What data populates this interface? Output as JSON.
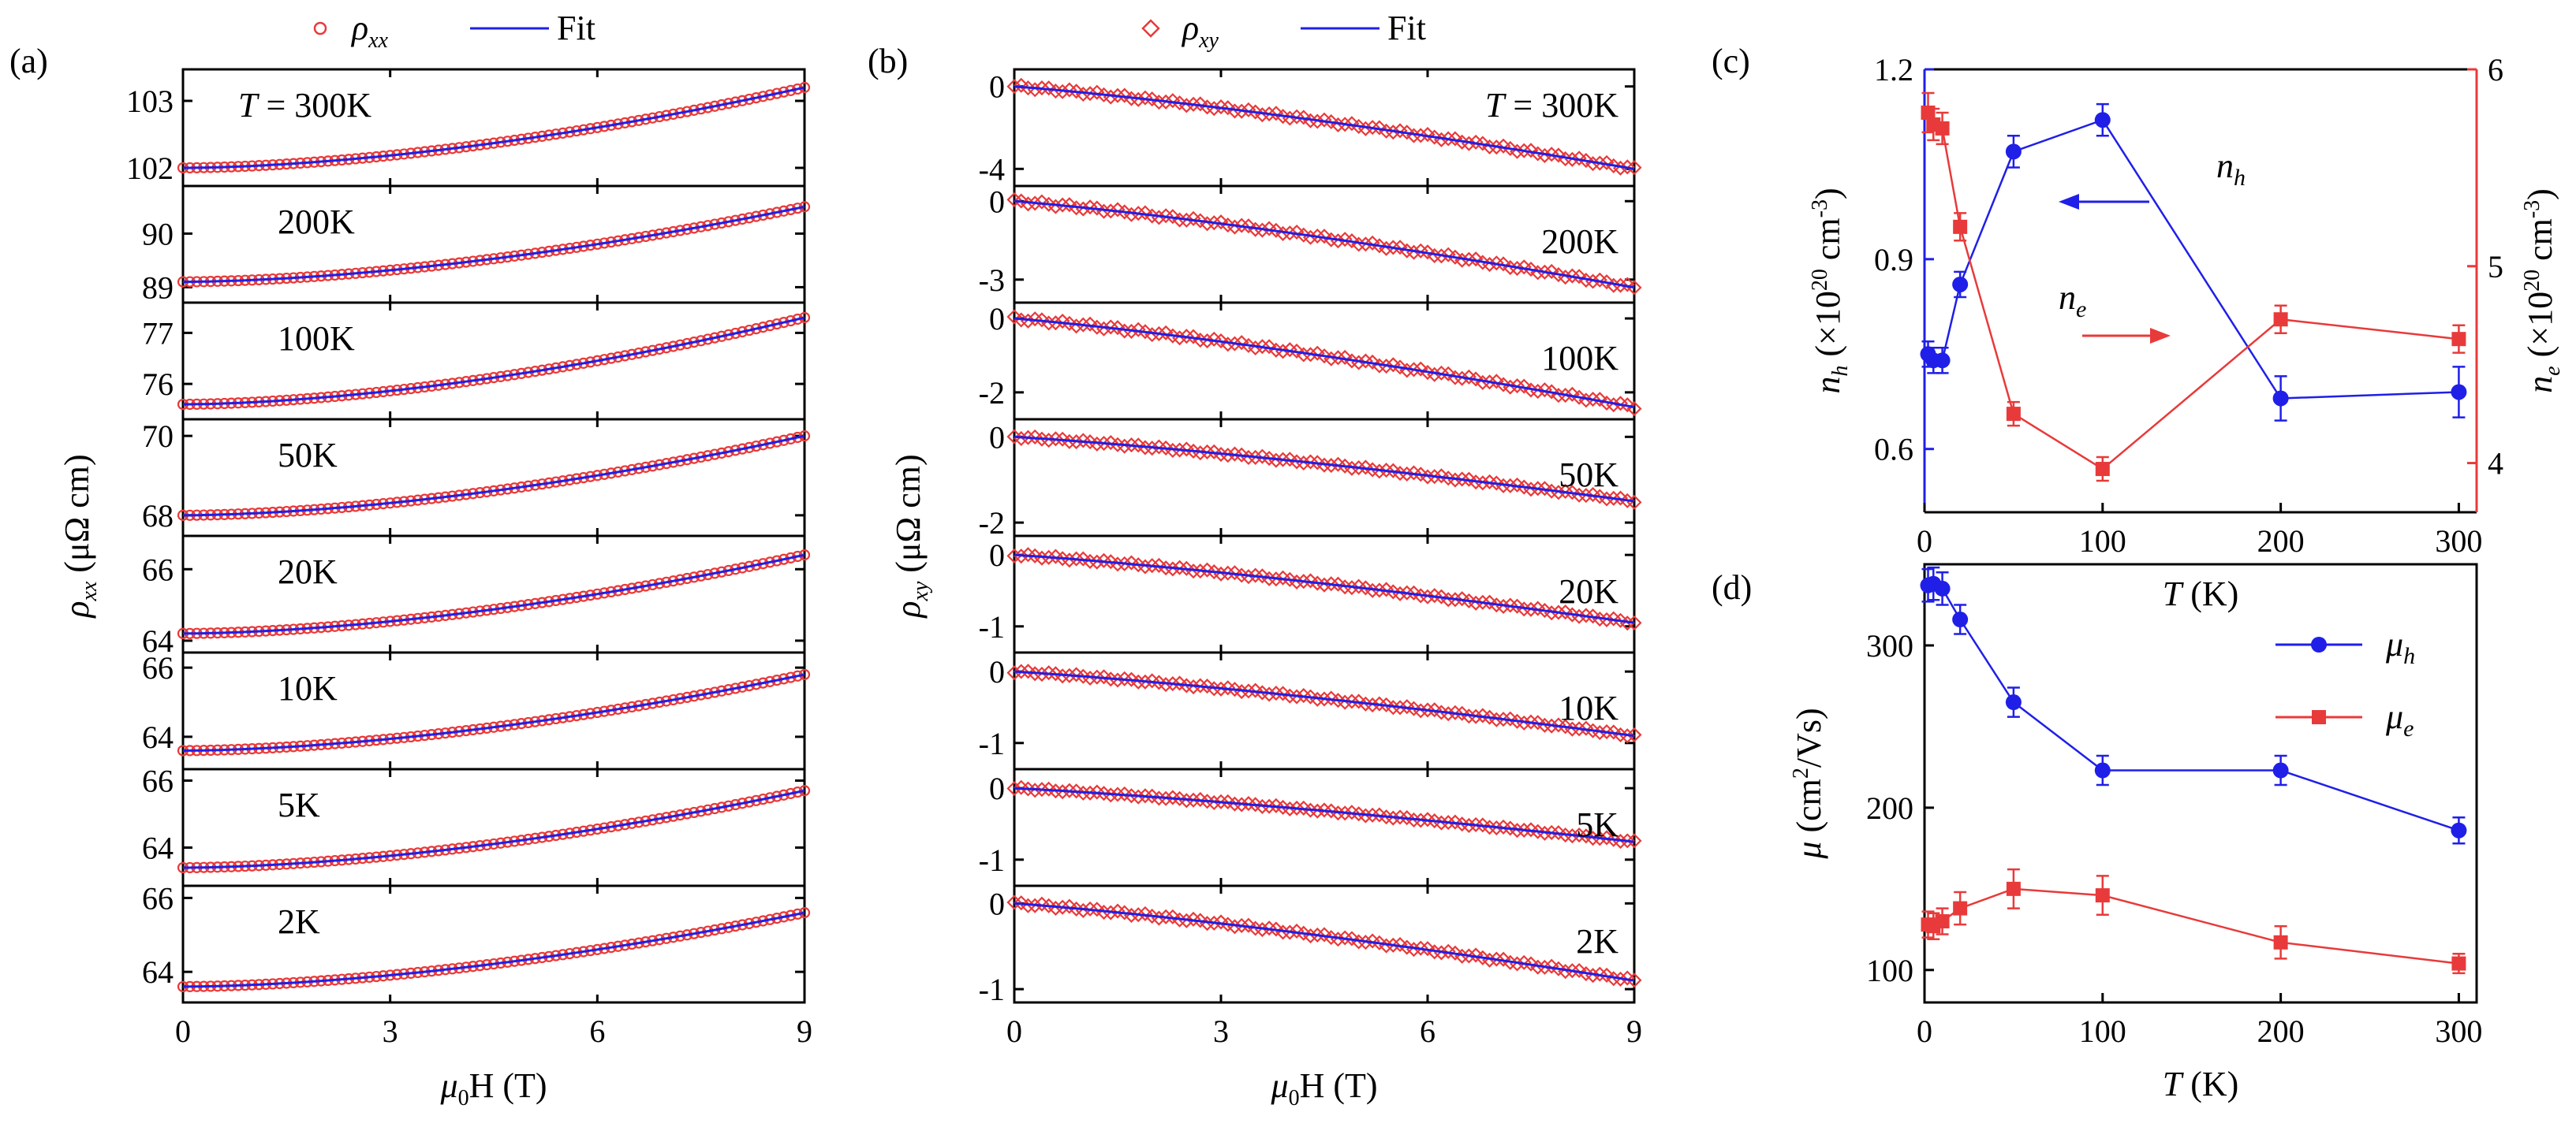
{
  "chart_data": [
    {
      "panel": "(a)",
      "type": "line",
      "legend": {
        "markers_label": "ρ",
        "markers_sub": "xx",
        "line_label": "Fit"
      },
      "xlabel": "μ0H (T)",
      "xlabel_main": "μ",
      "xlabel_sub": "0",
      "xlabel_tail": "H (T)",
      "ylabel": "ρxx (μΩ cm)",
      "ylabel_main": "ρ",
      "ylabel_sub": "xx",
      "ylabel_tail": " (μΩ cm)",
      "xlim": [
        0,
        9
      ],
      "xticks": [
        "0",
        "3",
        "6",
        "9"
      ],
      "subplots": [
        {
          "label": "T = 300K",
          "label_prefix": "T",
          "label_rest": " = 300K",
          "ylim": [
            101.8,
            103.4
          ],
          "yticks": [
            102,
            103
          ],
          "ytick_labels": [
            "102",
            "103"
          ],
          "y0": 102.0,
          "y9": 103.2
        },
        {
          "label": "200K",
          "ylim": [
            88.8,
            90.8
          ],
          "yticks": [
            89,
            90
          ],
          "ytick_labels": [
            "89",
            "90"
          ],
          "y0": 89.1,
          "y9": 90.5
        },
        {
          "label": "100K",
          "ylim": [
            75.4,
            77.5
          ],
          "yticks": [
            76,
            77
          ],
          "ytick_labels": [
            "76",
            "77"
          ],
          "y0": 75.6,
          "y9": 77.3
        },
        {
          "label": "50K",
          "ylim": [
            67.6,
            70.3
          ],
          "yticks": [
            68,
            70
          ],
          "ytick_labels": [
            "68",
            "70"
          ],
          "y0": 68.0,
          "y9": 70.0
        },
        {
          "label": "20K",
          "ylim": [
            63.8,
            66.8
          ],
          "yticks": [
            64,
            66
          ],
          "ytick_labels": [
            "64",
            "66"
          ],
          "y0": 64.2,
          "y9": 66.4
        },
        {
          "label": "10K",
          "ylim": [
            63.2,
            66.3
          ],
          "yticks": [
            64,
            66
          ],
          "ytick_labels": [
            "64",
            "66"
          ],
          "y0": 63.6,
          "y9": 65.8
        },
        {
          "label": "5K",
          "ylim": [
            63.0,
            66.2
          ],
          "yticks": [
            64,
            66
          ],
          "ytick_labels": [
            "64",
            "66"
          ],
          "y0": 63.4,
          "y9": 65.7
        },
        {
          "label": "2K",
          "ylim": [
            63.3,
            66.2
          ],
          "yticks": [
            64,
            66
          ],
          "ytick_labels": [
            "64",
            "66"
          ],
          "y0": 63.6,
          "y9": 65.6
        }
      ]
    },
    {
      "panel": "(b)",
      "type": "line",
      "legend": {
        "markers_label": "ρ",
        "markers_sub": "xy",
        "line_label": "Fit"
      },
      "xlabel": "μ0H (T)",
      "xlabel_main": "μ",
      "xlabel_sub": "0",
      "xlabel_tail": "H (T)",
      "ylabel": "ρxy (μΩ cm)",
      "ylabel_main": "ρ",
      "ylabel_sub": "xy",
      "ylabel_tail": " (μΩ cm)",
      "xlim": [
        0,
        9
      ],
      "xticks": [
        "0",
        "3",
        "6",
        "9"
      ],
      "subplots": [
        {
          "label": "T = 300K",
          "label_prefix": "T",
          "label_rest": " = 300K",
          "ylim": [
            -4.6,
            0.6
          ],
          "yticks": [
            0,
            -4
          ],
          "ytick_labels": [
            "0",
            "-4"
          ],
          "y9": -4.0
        },
        {
          "label": "200K",
          "ylim": [
            -3.7,
            0.4
          ],
          "yticks": [
            0,
            -3
          ],
          "ytick_labels": [
            "0",
            "-3"
          ],
          "y9": -3.3
        },
        {
          "label": "100K",
          "ylim": [
            -2.6,
            0.3
          ],
          "yticks": [
            0,
            -2
          ],
          "ytick_labels": [
            "0",
            "-2"
          ],
          "y9": -2.4
        },
        {
          "label": "50K",
          "ylim": [
            -2.2,
            0.3
          ],
          "yticks": [
            0,
            -2
          ],
          "ytick_labels": [
            "0",
            "-2"
          ],
          "y9": -1.5
        },
        {
          "label": "20K",
          "ylim": [
            -1.3,
            0.2
          ],
          "yticks": [
            0,
            -1
          ],
          "ytick_labels": [
            "0",
            "-1"
          ],
          "y9": -0.95
        },
        {
          "label": "10K",
          "ylim": [
            -1.3,
            0.2
          ],
          "yticks": [
            0,
            -1
          ],
          "ytick_labels": [
            "0",
            "-1"
          ],
          "y9": -0.9
        },
        {
          "label": "5K",
          "ylim": [
            -1.3,
            0.2
          ],
          "yticks": [
            0,
            -1
          ],
          "ytick_labels": [
            "0",
            "-1"
          ],
          "y9": -0.75
        },
        {
          "label": "2K",
          "ylim": [
            -1.1,
            0.15
          ],
          "yticks": [
            0,
            -1
          ],
          "ytick_labels": [
            "0",
            "-1"
          ],
          "y9": -0.9
        }
      ]
    },
    {
      "panel": "(c)",
      "type": "line",
      "xlabel": "T (K)",
      "xlabel_main": "T",
      "xlabel_tail": " (K)",
      "xlim": [
        0,
        310
      ],
      "xticks": [
        0,
        100,
        200,
        300
      ],
      "xtick_labels": [
        "0",
        "100",
        "200",
        "300"
      ],
      "left_axis": {
        "label": "nh (×10^20 cm^-3)",
        "label_main": "n",
        "label_sub": "h",
        "label_tail": " (×10",
        "label_exp": "20",
        "label_unit": " cm",
        "label_unit_exp": "-3",
        "label_close": ")",
        "ylim": [
          0.5,
          1.2
        ],
        "yticks": [
          0.6,
          0.9,
          1.2
        ],
        "ytick_labels": [
          "0.6",
          "0.9",
          "1.2"
        ],
        "color": "#1f1fe8"
      },
      "right_axis": {
        "label": "ne (×10^20 cm^-3)",
        "label_main": "n",
        "label_sub": "e",
        "label_tail": " (×10",
        "label_exp": "20",
        "label_unit": " cm",
        "label_unit_exp": "-3",
        "label_close": ")",
        "ylim": [
          3.75,
          6.0
        ],
        "yticks": [
          4,
          5,
          6
        ],
        "ytick_labels": [
          "4",
          "5",
          "6"
        ],
        "color": "#e83a3a"
      },
      "series": [
        {
          "name": "nh",
          "axis": "left",
          "color": "#1f1fe8",
          "marker": "circle",
          "x": [
            2,
            5,
            10,
            20,
            50,
            100,
            200,
            300
          ],
          "y": [
            0.75,
            0.74,
            0.74,
            0.86,
            1.07,
            1.12,
            0.68,
            0.69
          ],
          "err": [
            0.02,
            0.02,
            0.02,
            0.02,
            0.025,
            0.025,
            0.035,
            0.04
          ]
        },
        {
          "name": "ne",
          "axis": "right",
          "color": "#e83a3a",
          "marker": "square",
          "x": [
            2,
            5,
            10,
            20,
            50,
            100,
            200,
            300
          ],
          "y": [
            5.78,
            5.72,
            5.7,
            5.2,
            4.25,
            3.97,
            4.73,
            4.63
          ],
          "err": [
            0.1,
            0.08,
            0.08,
            0.07,
            0.06,
            0.06,
            0.07,
            0.07
          ]
        }
      ],
      "annotations": [
        {
          "text": "nh",
          "main": "n",
          "sub": "h",
          "color": "#1f1fe8",
          "arrow": "left"
        },
        {
          "text": "ne",
          "main": "n",
          "sub": "e",
          "color": "#e83a3a",
          "arrow": "right"
        }
      ]
    },
    {
      "panel": "(d)",
      "type": "line",
      "xlabel": "T (K)",
      "xlabel_main": "T",
      "xlabel_tail": " (K)",
      "ylabel": "μ (cm2/Vs)",
      "ylabel_main": "μ",
      "ylabel_tail": " (cm",
      "ylabel_exp": "2",
      "ylabel_close": "/Vs)",
      "xlim": [
        0,
        310
      ],
      "xticks": [
        0,
        100,
        200,
        300
      ],
      "xtick_labels": [
        "0",
        "100",
        "200",
        "300"
      ],
      "ylim": [
        80,
        350
      ],
      "yticks": [
        100,
        200,
        300
      ],
      "ytick_labels": [
        "100",
        "200",
        "300"
      ],
      "legend": [
        {
          "name": "μh",
          "main": "μ",
          "sub": "h",
          "color": "#1f1fe8"
        },
        {
          "name": "μe",
          "main": "μ",
          "sub": "e",
          "color": "#e83a3a"
        }
      ],
      "series": [
        {
          "name": "μh",
          "color": "#1f1fe8",
          "marker": "circle",
          "x": [
            2,
            5,
            10,
            20,
            50,
            100,
            200,
            300
          ],
          "y": [
            337,
            338,
            335,
            316,
            265,
            223,
            223,
            186
          ],
          "err": [
            10,
            10,
            10,
            9,
            9,
            9,
            9,
            8
          ]
        },
        {
          "name": "μe",
          "color": "#e83a3a",
          "marker": "square",
          "x": [
            2,
            5,
            10,
            20,
            50,
            100,
            200,
            300
          ],
          "y": [
            128,
            127,
            130,
            138,
            150,
            146,
            117,
            104
          ],
          "err": [
            8,
            8,
            8,
            10,
            12,
            12,
            10,
            6
          ]
        }
      ]
    }
  ]
}
